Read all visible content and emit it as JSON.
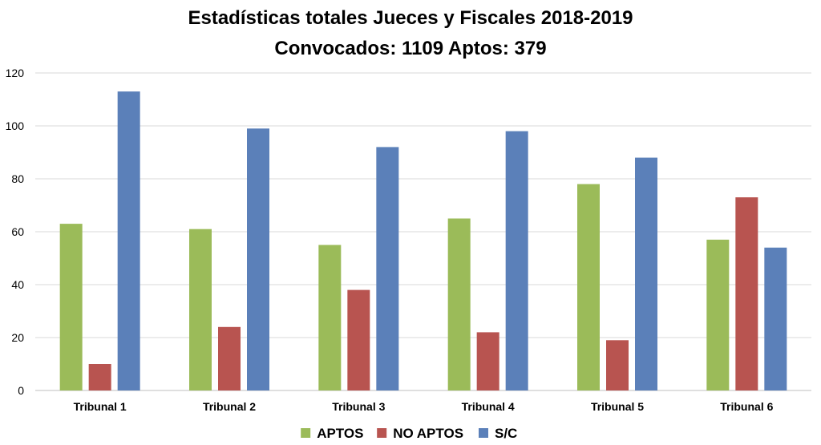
{
  "chart_data": {
    "type": "bar",
    "title": "Estadísticas totales Jueces y Fiscales 2018-2019",
    "subtitle": "Convocados: 1109 Aptos:  379",
    "categories": [
      "Tribunal 1",
      "Tribunal 2",
      "Tribunal 3",
      "Tribunal 4",
      "Tribunal 5",
      "Tribunal 6"
    ],
    "series": [
      {
        "name": "APTOS",
        "color": "#9bbb59",
        "values": [
          63,
          61,
          55,
          65,
          78,
          57
        ]
      },
      {
        "name": "NO APTOS",
        "color": "#b85450",
        "values": [
          10,
          24,
          38,
          22,
          19,
          73
        ]
      },
      {
        "name": "S/C",
        "color": "#5b80b9",
        "values": [
          113,
          99,
          92,
          98,
          88,
          54
        ]
      }
    ],
    "ylim": [
      0,
      120
    ],
    "yticks": [
      0,
      20,
      40,
      60,
      80,
      100,
      120
    ],
    "grid": true,
    "legend": "bottom"
  }
}
